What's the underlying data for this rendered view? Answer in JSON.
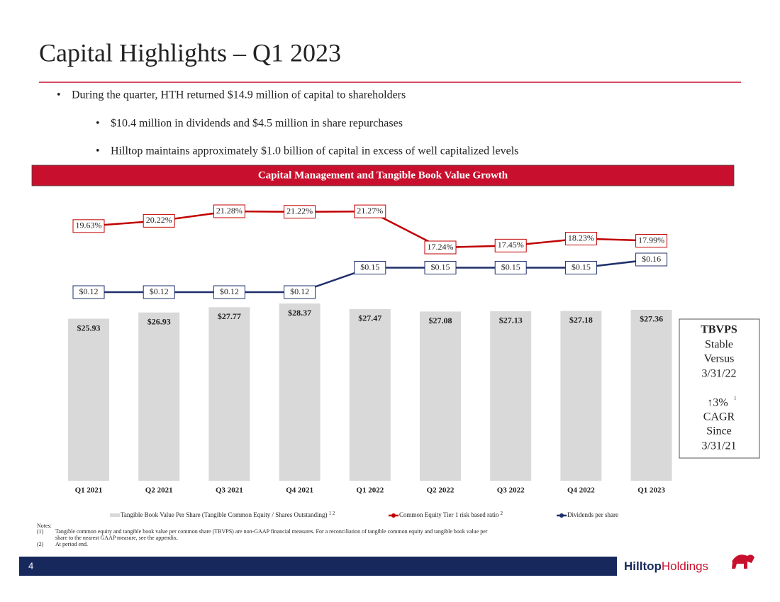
{
  "title": "Capital Highlights – Q1 2023",
  "bullets": [
    "During the quarter, HTH returned $14.9 million of capital to shareholders",
    "$10.4 million in dividends and $4.5 million in share repurchases",
    "Hilltop maintains approximately $1.0 billion of capital in excess of well capitalized levels"
  ],
  "banner": "Capital Management and Tangible Book Value Growth",
  "chart_data": {
    "type": "bar_line",
    "categories": [
      "Q1 2021",
      "Q2 2021",
      "Q3 2021",
      "Q4 2021",
      "Q1 2022",
      "Q2 2022",
      "Q3 2022",
      "Q4 2022",
      "Q1 2023"
    ],
    "series": [
      {
        "name": "Tangible Book Value Per Share (Tangible Common Equity / Shares Outstanding)",
        "note": "1 2",
        "type": "bar",
        "color": "#d9d9d9",
        "values": [
          25.93,
          26.93,
          27.77,
          28.37,
          27.47,
          27.08,
          27.13,
          27.18,
          27.36
        ],
        "value_labels": [
          "$25.93",
          "$26.93",
          "$27.77",
          "$28.37",
          "$27.47",
          "$27.08",
          "$27.13",
          "$27.18",
          "$27.36"
        ]
      },
      {
        "name": "Common Equity Tier 1 risk based ratio",
        "note": "2",
        "type": "line",
        "color": "#c00000",
        "values": [
          19.63,
          20.22,
          21.28,
          21.22,
          21.27,
          17.24,
          17.45,
          18.23,
          17.99
        ],
        "value_labels": [
          "19.63%",
          "20.22%",
          "21.28%",
          "21.22%",
          "21.27%",
          "17.24%",
          "17.45%",
          "18.23%",
          "17.99%"
        ]
      },
      {
        "name": "Dividends per share",
        "type": "line",
        "color": "#1f2f6b",
        "values": [
          0.12,
          0.12,
          0.12,
          0.12,
          0.15,
          0.15,
          0.15,
          0.15,
          0.16
        ],
        "value_labels": [
          "$0.12",
          "$0.12",
          "$0.12",
          "$0.12",
          "$0.15",
          "$0.15",
          "$0.15",
          "$0.15",
          "$0.16"
        ]
      }
    ]
  },
  "callout": {
    "lines": [
      "TBVPS",
      "Stable",
      "Versus",
      "3/31/22"
    ],
    "growth": "↑3%",
    "growth_note": "1",
    "lines2": [
      "CAGR",
      "Since",
      "3/31/21"
    ]
  },
  "notes": {
    "heading": "Notes:",
    "items": [
      [
        "(1)",
        "Tangible common equity and tangible book value per common share (TBVPS) are non-GAAP financial measures. For a reconciliation of tangible common equity and tangible book value per",
        "share to the nearest GAAP measure, see the appendix."
      ],
      [
        "(2)",
        "At period end."
      ]
    ]
  },
  "page_number": "4",
  "logo": {
    "bold": "Hilltop",
    "rest": "Holdings"
  }
}
